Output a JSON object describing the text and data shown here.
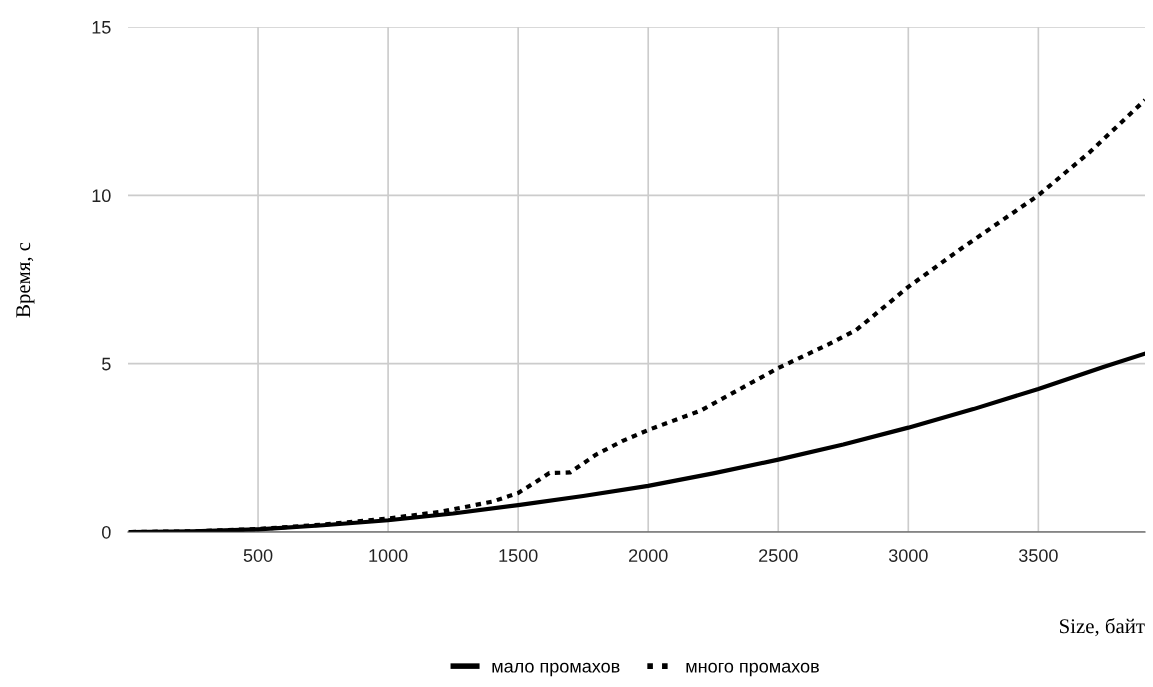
{
  "chart_data": {
    "type": "line",
    "xlabel": "Size, байт",
    "ylabel": "Время, с",
    "xlim": [
      0,
      3910
    ],
    "ylim": [
      0,
      15
    ],
    "xticks": [
      500,
      1000,
      1500,
      2000,
      2500,
      3000,
      3500
    ],
    "yticks": [
      0,
      5,
      10,
      15
    ],
    "grid": true,
    "legend": "bottom",
    "marker": "none",
    "series": [
      {
        "name": "мало промахов",
        "color": "#000000",
        "line_style": "solid",
        "x": [
          10,
          250,
          500,
          750,
          1000,
          1250,
          1500,
          1750,
          2000,
          2250,
          2500,
          2750,
          3000,
          3250,
          3500,
          3750,
          3910
        ],
        "values": [
          0,
          0.02,
          0.08,
          0.2,
          0.35,
          0.55,
          0.8,
          1.07,
          1.37,
          1.74,
          2.15,
          2.6,
          3.1,
          3.65,
          4.25,
          4.9,
          5.3
        ]
      },
      {
        "name": "много промахов",
        "color": "#000000",
        "line_style": "dotted",
        "x": [
          10,
          250,
          500,
          750,
          1000,
          1200,
          1400,
          1500,
          1560,
          1620,
          1700,
          1800,
          1900,
          2000,
          2200,
          2500,
          2700,
          2800,
          3000,
          3200,
          3500,
          3700,
          3910
        ],
        "values": [
          0,
          0.02,
          0.09,
          0.22,
          0.4,
          0.6,
          0.9,
          1.16,
          1.45,
          1.75,
          1.77,
          2.3,
          2.7,
          3.03,
          3.6,
          4.87,
          5.6,
          6.0,
          7.28,
          8.4,
          10.0,
          11.3,
          12.83
        ]
      }
    ]
  }
}
